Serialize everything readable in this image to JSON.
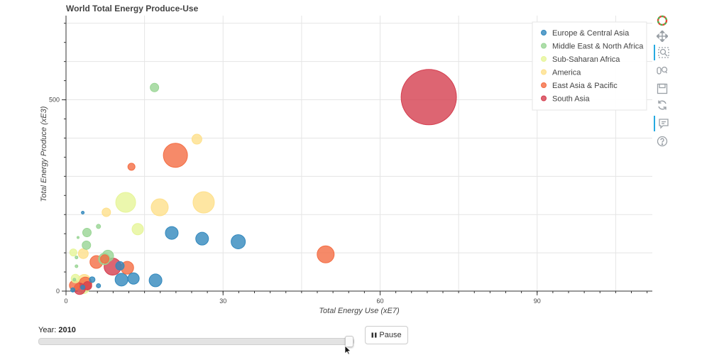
{
  "chart_data": {
    "type": "scatter",
    "title": "World Total Energy Produce-Use",
    "xlabel": "Total Energy Use (xE7)",
    "ylabel": "Total Energy Produce (xE3)",
    "xlim": [
      0,
      112
    ],
    "ylim": [
      0,
      720
    ],
    "x_ticks": [
      0,
      30,
      60,
      90
    ],
    "y_ticks": [
      0,
      500
    ],
    "grid": true,
    "legend_position": "top-right",
    "series": [
      {
        "name": "Europe & Central Asia",
        "color": "#3288bd",
        "points": [
          {
            "x": 20.2,
            "y": 152,
            "size": 9
          },
          {
            "x": 26.0,
            "y": 137,
            "size": 9
          },
          {
            "x": 32.9,
            "y": 129,
            "size": 10
          },
          {
            "x": 17.1,
            "y": 28,
            "size": 9
          },
          {
            "x": 12.9,
            "y": 33,
            "size": 8
          },
          {
            "x": 10.6,
            "y": 30,
            "size": 9
          },
          {
            "x": 10.3,
            "y": 66,
            "size": 6
          },
          {
            "x": 6.2,
            "y": 14,
            "size": 3
          },
          {
            "x": 5.0,
            "y": 30,
            "size": 4
          },
          {
            "x": 3.2,
            "y": 10,
            "size": 3
          },
          {
            "x": 1.3,
            "y": 3,
            "size": 3
          },
          {
            "x": 3.2,
            "y": 205,
            "size": 2
          }
        ]
      },
      {
        "name": "Middle East & North Africa",
        "color": "#99d594",
        "points": [
          {
            "x": 16.9,
            "y": 532,
            "size": 6
          },
          {
            "x": 4.0,
            "y": 153,
            "size": 6
          },
          {
            "x": 3.9,
            "y": 120,
            "size": 6
          },
          {
            "x": 6.2,
            "y": 169,
            "size": 3
          },
          {
            "x": 7.3,
            "y": 84,
            "size": 8
          },
          {
            "x": 8.0,
            "y": 92,
            "size": 8
          },
          {
            "x": 2.3,
            "y": 140,
            "size": 1.5
          },
          {
            "x": 2.0,
            "y": 65,
            "size": 2
          },
          {
            "x": 2.0,
            "y": 88,
            "size": 2
          },
          {
            "x": 1.6,
            "y": 30,
            "size": 2
          }
        ]
      },
      {
        "name": "Sub-Saharan Africa",
        "color": "#e6f598",
        "points": [
          {
            "x": 11.4,
            "y": 232,
            "size": 14
          },
          {
            "x": 13.7,
            "y": 162,
            "size": 8
          },
          {
            "x": 1.4,
            "y": 101,
            "size": 5
          },
          {
            "x": 3.3,
            "y": 10,
            "size": 9
          },
          {
            "x": 1.8,
            "y": 33,
            "size": 6
          }
        ]
      },
      {
        "name": "America",
        "color": "#fee08b",
        "points": [
          {
            "x": 26.3,
            "y": 232,
            "size": 15
          },
          {
            "x": 17.9,
            "y": 219,
            "size": 12
          },
          {
            "x": 25.0,
            "y": 397,
            "size": 7
          },
          {
            "x": 7.7,
            "y": 206,
            "size": 6
          },
          {
            "x": 3.3,
            "y": 98,
            "size": 7
          },
          {
            "x": 3.5,
            "y": 27,
            "size": 9
          }
        ]
      },
      {
        "name": "East Asia & Pacific",
        "color": "#f46d43",
        "points": [
          {
            "x": 20.9,
            "y": 355,
            "size": 17
          },
          {
            "x": 12.5,
            "y": 325,
            "size": 5
          },
          {
            "x": 49.6,
            "y": 96,
            "size": 12
          },
          {
            "x": 11.7,
            "y": 61,
            "size": 9
          },
          {
            "x": 5.8,
            "y": 76,
            "size": 9
          },
          {
            "x": 7.4,
            "y": 84,
            "size": 6
          },
          {
            "x": 1.6,
            "y": 15,
            "size": 7
          },
          {
            "x": 3.7,
            "y": 20,
            "size": 9
          }
        ]
      },
      {
        "name": "South Asia",
        "color": "#d53e4f",
        "points": [
          {
            "x": 69.3,
            "y": 507,
            "size": 39
          },
          {
            "x": 8.9,
            "y": 64,
            "size": 12
          },
          {
            "x": 2.6,
            "y": 6,
            "size": 8
          },
          {
            "x": 4.1,
            "y": 14,
            "size": 6
          }
        ]
      }
    ]
  },
  "controls": {
    "year_prefix": "Year:",
    "year_value": "2010",
    "slider_fraction": 1.0,
    "pause_label": "Pause"
  },
  "toolbar": {
    "tools": [
      {
        "icon": "bokeh-logo-icon",
        "active": false
      },
      {
        "icon": "pan-icon",
        "active": false
      },
      {
        "icon": "box-zoom-icon",
        "active": true
      },
      {
        "icon": "wheel-zoom-icon",
        "active": false
      },
      {
        "icon": "save-icon",
        "active": false
      },
      {
        "icon": "reset-icon",
        "active": false
      },
      {
        "icon": "hover-icon",
        "active": true
      },
      {
        "icon": "help-icon",
        "active": false
      }
    ]
  }
}
